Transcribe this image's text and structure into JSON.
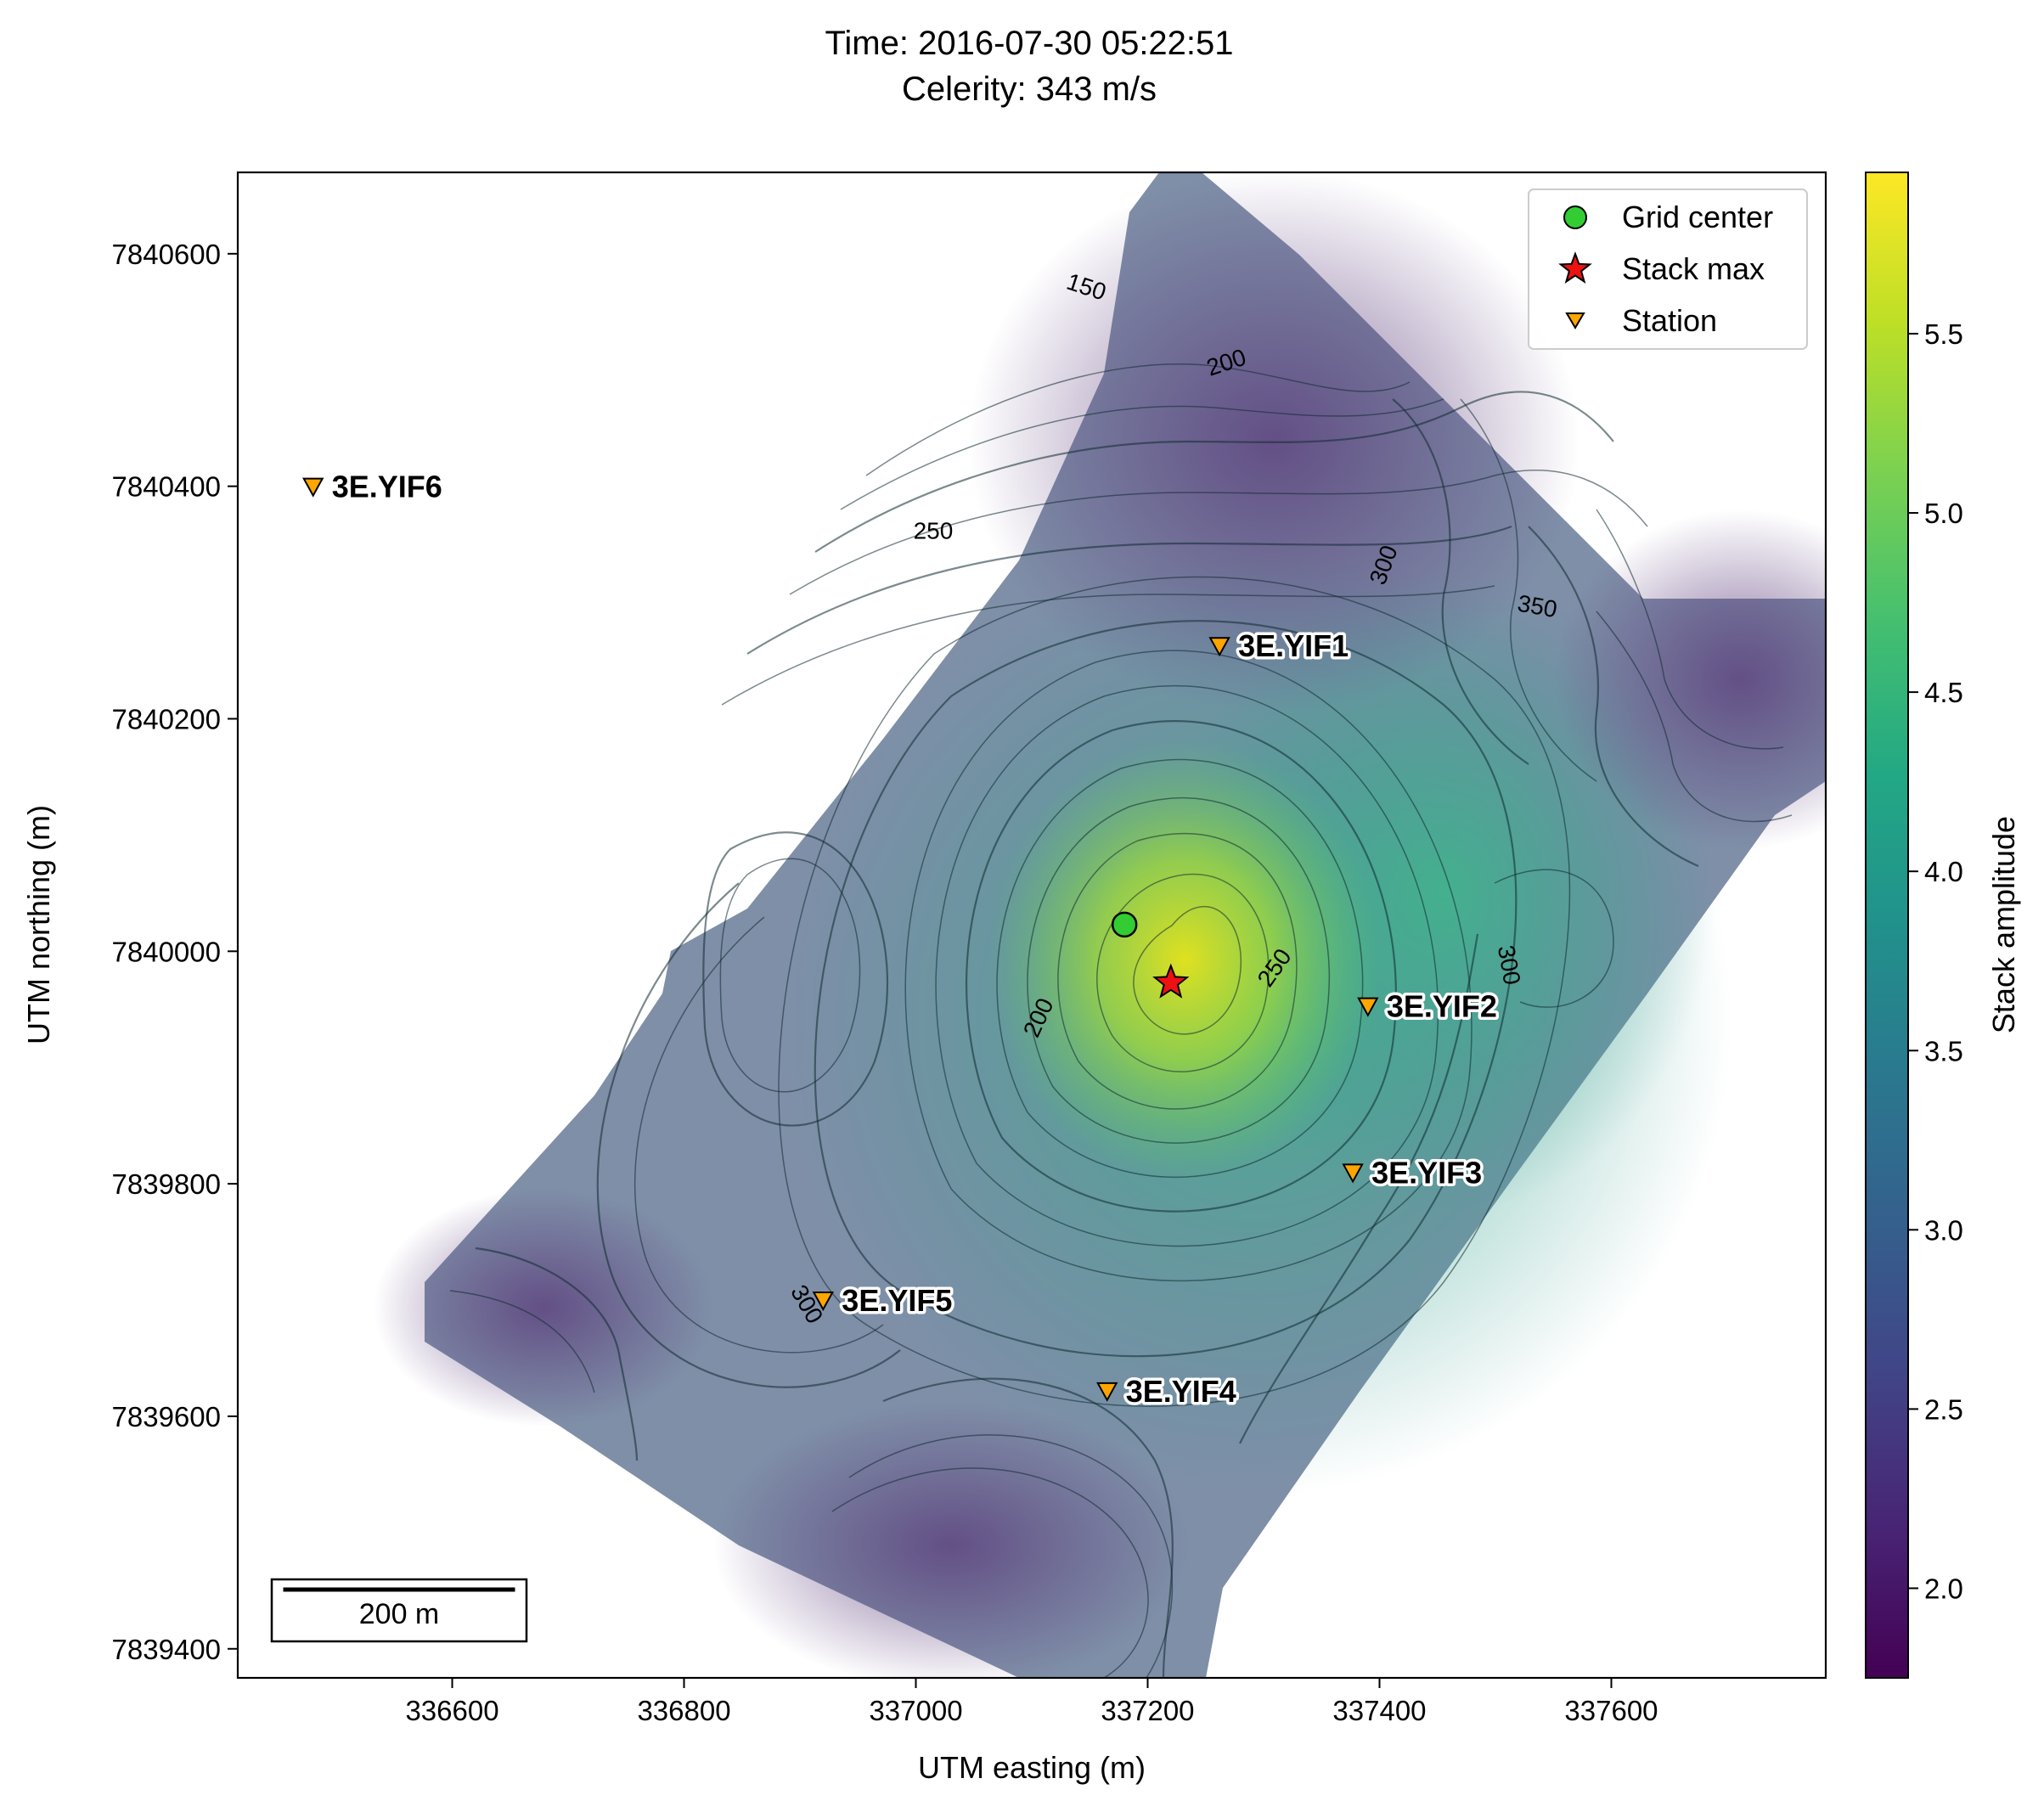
{
  "figure": {
    "title_line1": "Time: 2016-07-30 05:22:51",
    "title_line2": "Celerity: 343 m/s"
  },
  "chart_data": {
    "type": "heatmap",
    "xlabel": "UTM easting (m)",
    "ylabel": "UTM northing (m)",
    "xlim": [
      336415,
      337785
    ],
    "ylim": [
      7839375,
      7840670
    ],
    "xticks": [
      336600,
      336800,
      337000,
      337200,
      337400,
      337600
    ],
    "yticks": [
      7839400,
      7839600,
      7839800,
      7840000,
      7840200,
      7840400,
      7840600
    ],
    "colorbar": {
      "label": "Stack amplitude",
      "colormap": "viridis",
      "range": [
        1.75,
        5.95
      ],
      "ticks": [
        2.0,
        2.5,
        3.0,
        3.5,
        4.0,
        4.5,
        5.0,
        5.5
      ]
    },
    "grid_center": {
      "x": 337180,
      "y": 7840023
    },
    "stack_max": {
      "x": 337220,
      "y": 7839973
    },
    "stations": [
      {
        "name": "3E.YIF1",
        "x": 337262,
        "y": 7840263
      },
      {
        "name": "3E.YIF2",
        "x": 337390,
        "y": 7839953
      },
      {
        "name": "3E.YIF3",
        "x": 337377,
        "y": 7839810
      },
      {
        "name": "3E.YIF4",
        "x": 337165,
        "y": 7839622
      },
      {
        "name": "3E.YIF5",
        "x": 336920,
        "y": 7839700
      },
      {
        "name": "3E.YIF6",
        "x": 336480,
        "y": 7840400
      }
    ],
    "contour_labels": [
      {
        "text": "150",
        "x": 337145,
        "y": 7840565
      },
      {
        "text": "200",
        "x": 337270,
        "y": 7840500
      },
      {
        "text": "250",
        "x": 337015,
        "y": 7840355
      },
      {
        "text": "300",
        "x": 337410,
        "y": 7840330
      },
      {
        "text": "350",
        "x": 337535,
        "y": 7840290
      },
      {
        "text": "200",
        "x": 337112,
        "y": 7839940
      },
      {
        "text": "250",
        "x": 337315,
        "y": 7839982
      },
      {
        "text": "300",
        "x": 337505,
        "y": 7839987
      },
      {
        "text": "300",
        "x": 336900,
        "y": 7839693
      }
    ],
    "legend": {
      "placement": "upper right",
      "items": [
        "Grid center",
        "Stack max",
        "Station"
      ]
    },
    "scale_bar": {
      "label": "200 m",
      "length_m": 200
    }
  },
  "colors": {
    "grid_center": "#33cc33",
    "stack_max": "#ee1111",
    "station": "#ffa500",
    "contour": "#0f2a2f"
  }
}
